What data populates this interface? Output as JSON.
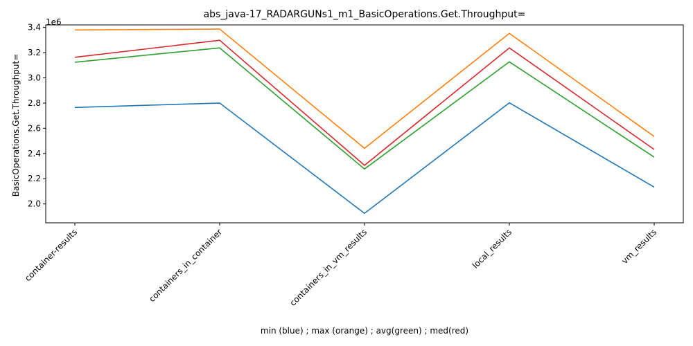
{
  "chart_data": {
    "type": "line",
    "title": "abs_java-17_RADARGUNs1_m1_BasicOperations.Get.Throughput=",
    "xlabel": "min (blue) ; max (orange) ; avg(green) ; med(red)",
    "ylabel": "BasicOperations.Get.Throughput=",
    "y_offset_label": "1e6",
    "categories": [
      "container-results",
      "containers_in_container",
      "containers_in_vm_results",
      "local_results",
      "vm_results"
    ],
    "ylim": [
      1.85,
      3.42
    ],
    "yticks": [
      2.0,
      2.2,
      2.4,
      2.6,
      2.8,
      3.0,
      3.2,
      3.4
    ],
    "ytick_labels": [
      "2.0",
      "2.2",
      "2.4",
      "2.6",
      "2.8",
      "3.0",
      "3.2",
      "3.4"
    ],
    "grid": false,
    "series": [
      {
        "color": "#1f77b4",
        "values": [
          2.765,
          2.8,
          1.925,
          2.802,
          2.133
        ]
      },
      {
        "color": "#ff7f0e",
        "values": [
          3.38,
          3.387,
          2.441,
          3.353,
          2.535
        ]
      },
      {
        "color": "#2ca02c",
        "values": [
          3.124,
          3.238,
          2.277,
          3.127,
          2.371
        ]
      },
      {
        "color": "#d62728",
        "values": [
          3.163,
          3.298,
          2.306,
          3.238,
          2.432
        ]
      }
    ]
  }
}
